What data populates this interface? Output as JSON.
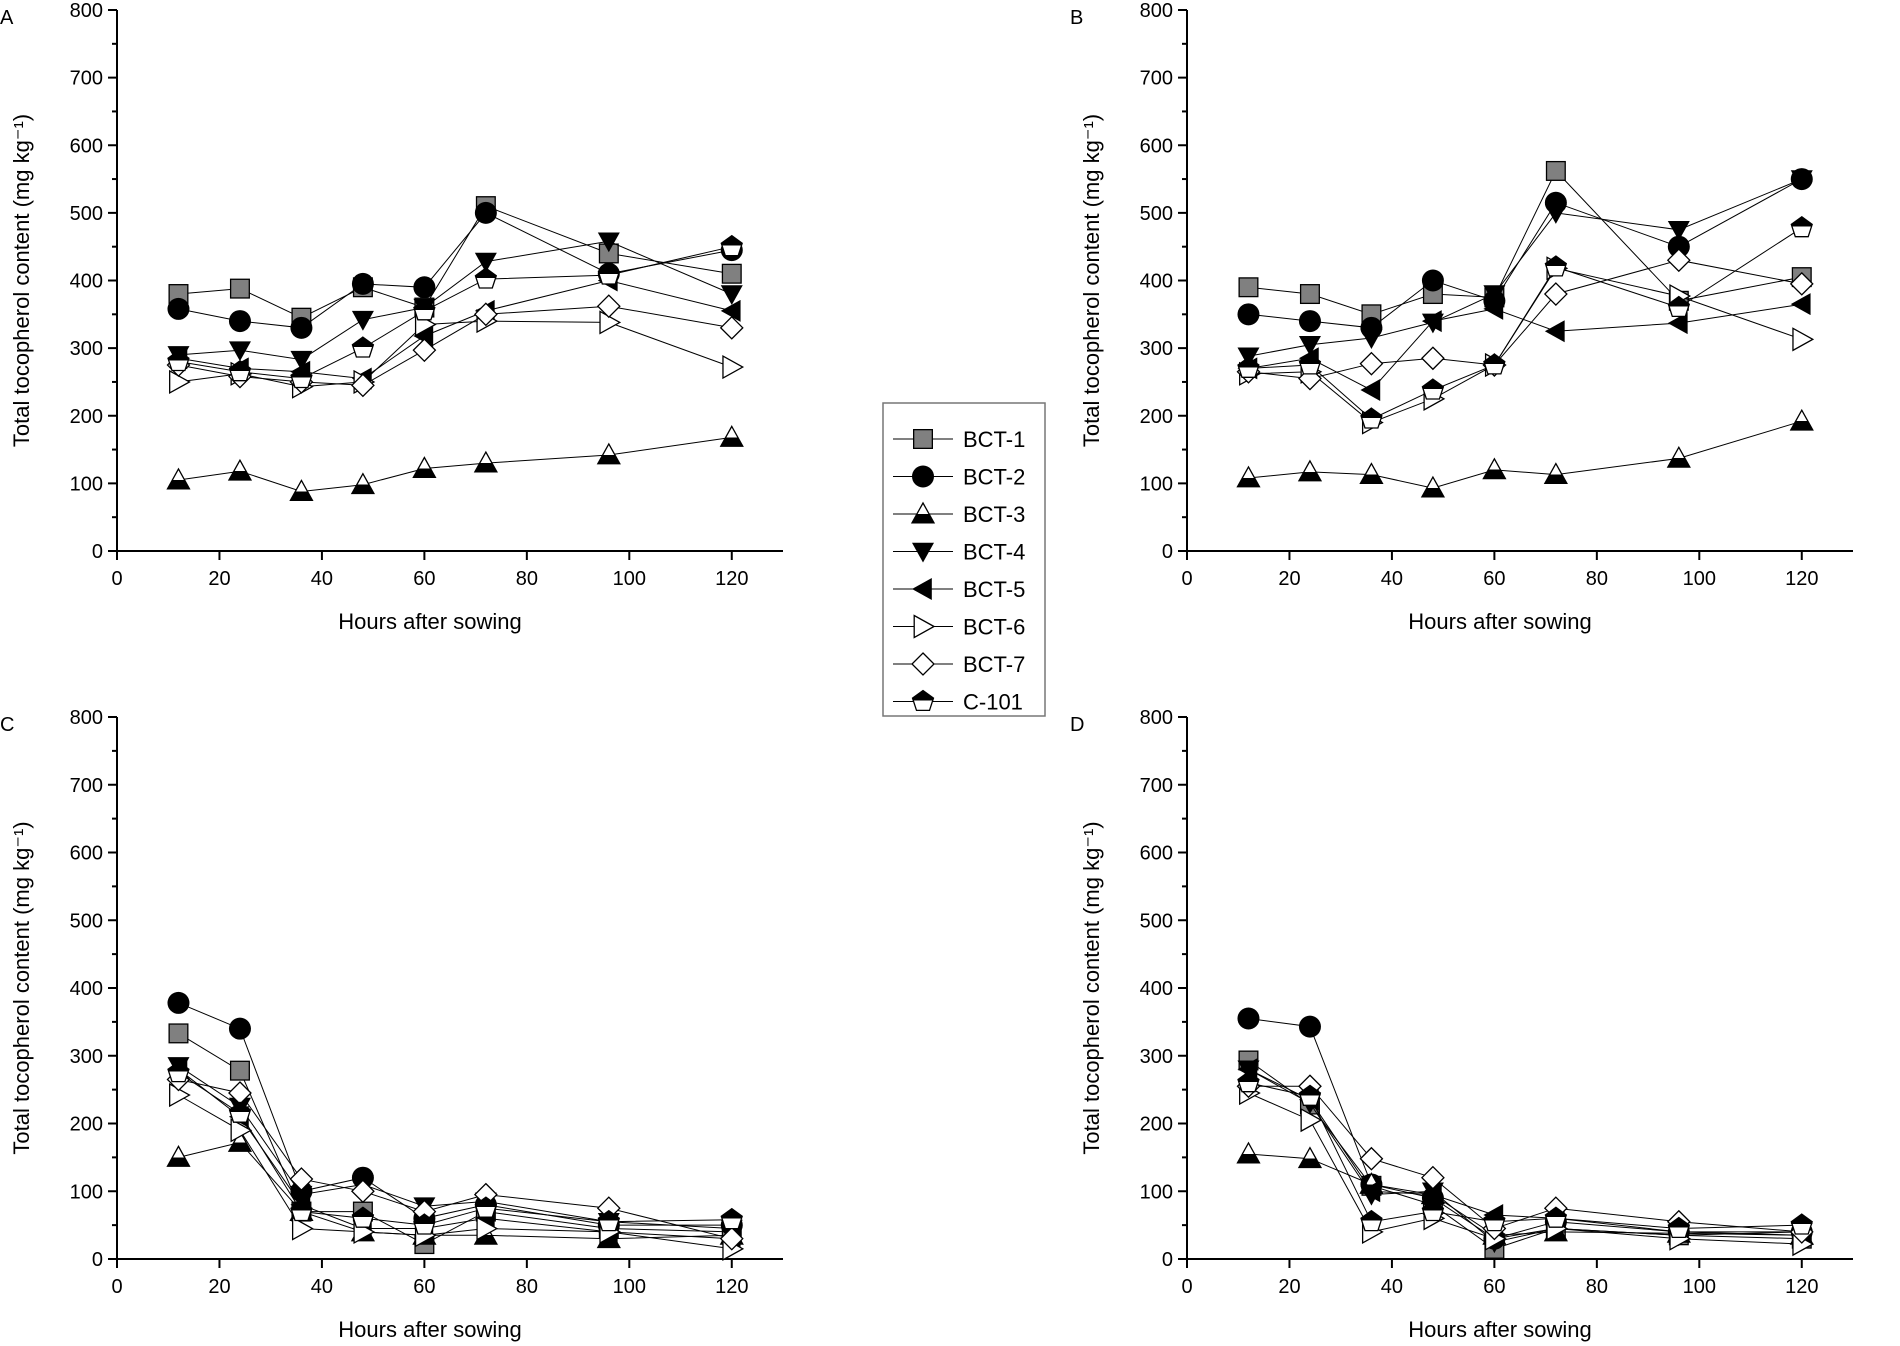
{
  "chart_data": [
    {
      "panel": "A",
      "type": "line",
      "xlabel": "Hours after sowing",
      "ylabel": "Total tocopherol content (mg kg⁻¹)",
      "xlim": [
        0,
        130
      ],
      "ylim": [
        0,
        800
      ],
      "xticks": [
        0,
        20,
        40,
        60,
        80,
        100,
        120
      ],
      "yticks": [
        0,
        100,
        200,
        300,
        400,
        500,
        600,
        700,
        800
      ],
      "x": [
        12,
        24,
        36,
        48,
        60,
        72,
        96,
        120
      ],
      "series": [
        {
          "name": "BCT-1",
          "values": [
            380,
            388,
            345,
            390,
            360,
            510,
            440,
            410
          ]
        },
        {
          "name": "BCT-2",
          "values": [
            358,
            340,
            330,
            395,
            390,
            500,
            410,
            445
          ]
        },
        {
          "name": "BCT-3",
          "values": [
            105,
            118,
            88,
            98,
            122,
            130,
            142,
            168
          ]
        },
        {
          "name": "BCT-4",
          "values": [
            290,
            297,
            283,
            342,
            360,
            428,
            458,
            380
          ]
        },
        {
          "name": "BCT-5",
          "values": [
            285,
            270,
            265,
            255,
            318,
            355,
            400,
            355
          ]
        },
        {
          "name": "BCT-6",
          "values": [
            250,
            262,
            243,
            250,
            335,
            340,
            338,
            272
          ]
        },
        {
          "name": "BCT-7",
          "values": [
            275,
            258,
            250,
            245,
            297,
            350,
            362,
            330
          ]
        },
        {
          "name": "C-101",
          "values": [
            280,
            265,
            255,
            300,
            355,
            402,
            408,
            450
          ]
        }
      ]
    },
    {
      "panel": "B",
      "type": "line",
      "xlabel": "Hours after sowing",
      "ylabel": "Total tocopherol content (mg kg⁻¹)",
      "xlim": [
        0,
        130
      ],
      "ylim": [
        0,
        800
      ],
      "xticks": [
        0,
        20,
        40,
        60,
        80,
        100,
        120
      ],
      "yticks": [
        0,
        100,
        200,
        300,
        400,
        500,
        600,
        700,
        800
      ],
      "x": [
        12,
        24,
        36,
        48,
        60,
        72,
        96,
        120
      ],
      "series": [
        {
          "name": "BCT-1",
          "values": [
            390,
            380,
            350,
            380,
            375,
            562,
            370,
            405
          ]
        },
        {
          "name": "BCT-2",
          "values": [
            350,
            340,
            330,
            400,
            370,
            515,
            450,
            550
          ]
        },
        {
          "name": "BCT-3",
          "values": [
            108,
            117,
            113,
            93,
            120,
            113,
            137,
            192
          ]
        },
        {
          "name": "BCT-4",
          "values": [
            288,
            305,
            315,
            338,
            380,
            500,
            475,
            550
          ]
        },
        {
          "name": "BCT-5",
          "values": [
            270,
            285,
            238,
            340,
            358,
            325,
            337,
            365
          ]
        },
        {
          "name": "BCT-6",
          "values": [
            262,
            265,
            190,
            225,
            275,
            418,
            377,
            313
          ]
        },
        {
          "name": "BCT-7",
          "values": [
            265,
            255,
            277,
            285,
            275,
            380,
            430,
            395
          ]
        },
        {
          "name": "C-101",
          "values": [
            270,
            275,
            195,
            238,
            275,
            420,
            360,
            478
          ]
        }
      ]
    },
    {
      "panel": "C",
      "type": "line",
      "xlabel": "Hours after sowing",
      "ylabel": "Total tocopherol content (mg kg⁻¹)",
      "xlim": [
        0,
        130
      ],
      "ylim": [
        0,
        800
      ],
      "xticks": [
        0,
        20,
        40,
        60,
        80,
        100,
        120
      ],
      "yticks": [
        0,
        100,
        200,
        300,
        400,
        500,
        600,
        700,
        800
      ],
      "x": [
        12,
        24,
        36,
        48,
        60,
        72,
        96,
        120
      ],
      "series": [
        {
          "name": "BCT-1",
          "values": [
            333,
            278,
            70,
            70,
            22,
            70,
            45,
            40
          ]
        },
        {
          "name": "BCT-2",
          "values": [
            378,
            340,
            100,
            120,
            60,
            80,
            50,
            50
          ]
        },
        {
          "name": "BCT-3",
          "values": [
            150,
            172,
            70,
            40,
            35,
            35,
            30,
            35
          ]
        },
        {
          "name": "BCT-4",
          "values": [
            285,
            225,
            95,
            110,
            78,
            85,
            55,
            45
          ]
        },
        {
          "name": "BCT-5",
          "values": [
            280,
            210,
            80,
            45,
            45,
            60,
            40,
            30
          ]
        },
        {
          "name": "BCT-6",
          "values": [
            242,
            190,
            45,
            40,
            35,
            45,
            40,
            15
          ]
        },
        {
          "name": "BCT-7",
          "values": [
            265,
            245,
            118,
            100,
            70,
            95,
            75,
            30
          ]
        },
        {
          "name": "C-101",
          "values": [
            275,
            215,
            70,
            60,
            50,
            75,
            55,
            58
          ]
        }
      ]
    },
    {
      "panel": "D",
      "type": "line",
      "xlabel": "Hours after sowing",
      "ylabel": "Total tocopherol content (mg kg⁻¹)",
      "xlim": [
        0,
        130
      ],
      "ylim": [
        0,
        800
      ],
      "xticks": [
        0,
        20,
        40,
        60,
        80,
        100,
        120
      ],
      "yticks": [
        0,
        100,
        200,
        300,
        400,
        500,
        600,
        700,
        800
      ],
      "x": [
        12,
        24,
        36,
        48,
        60,
        72,
        96,
        120
      ],
      "series": [
        {
          "name": "BCT-1",
          "values": [
            293,
            228,
            108,
            80,
            15,
            45,
            35,
            30
          ]
        },
        {
          "name": "BCT-2",
          "values": [
            355,
            343,
            110,
            90,
            30,
            55,
            40,
            40
          ]
        },
        {
          "name": "BCT-3",
          "values": [
            155,
            148,
            110,
            95,
            35,
            40,
            38,
            35
          ]
        },
        {
          "name": "BCT-4",
          "values": [
            280,
            230,
            95,
            100,
            25,
            45,
            35,
            40
          ]
        },
        {
          "name": "BCT-5",
          "values": [
            280,
            235,
            100,
            95,
            65,
            60,
            40,
            35
          ]
        },
        {
          "name": "BCT-6",
          "values": [
            245,
            205,
            40,
            60,
            30,
            45,
            30,
            22
          ]
        },
        {
          "name": "BCT-7",
          "values": [
            255,
            255,
            148,
            120,
            45,
            75,
            55,
            40
          ]
        },
        {
          "name": "C-101",
          "values": [
            260,
            240,
            55,
            70,
            55,
            60,
            45,
            50
          ]
        }
      ]
    }
  ],
  "legend": {
    "placement": "center",
    "entries": [
      {
        "name": "BCT-1",
        "marker": "square",
        "fill": "#808080"
      },
      {
        "name": "BCT-2",
        "marker": "circle",
        "fill": "#000000"
      },
      {
        "name": "BCT-3",
        "marker": "triangle-up-half",
        "fill": "#ffffff"
      },
      {
        "name": "BCT-4",
        "marker": "triangle-down",
        "fill": "#000000"
      },
      {
        "name": "BCT-5",
        "marker": "triangle-left",
        "fill": "#000000"
      },
      {
        "name": "BCT-6",
        "marker": "triangle-right",
        "fill": "#ffffff"
      },
      {
        "name": "BCT-7",
        "marker": "diamond",
        "fill": "#ffffff"
      },
      {
        "name": "C-101",
        "marker": "pentagon-half",
        "fill": "#ffffff"
      }
    ]
  }
}
